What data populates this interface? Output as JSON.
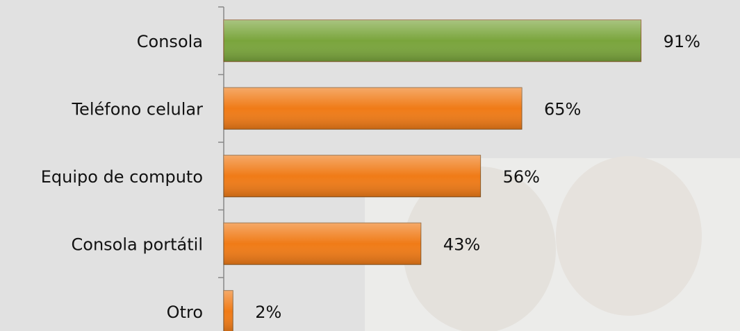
{
  "chart_data": {
    "type": "bar",
    "orientation": "horizontal",
    "categories": [
      "Consola",
      "Teléfono celular",
      "Equipo de computo",
      "Consola portátil",
      "Otro"
    ],
    "values": [
      91,
      65,
      56,
      43,
      2
    ],
    "value_labels": [
      "91%",
      "65%",
      "56%",
      "43%",
      "2%"
    ],
    "colors": [
      "#7aa53c",
      "#f07b17",
      "#f07b17",
      "#f07b17",
      "#f07b17"
    ],
    "xlim": [
      0,
      100
    ]
  }
}
